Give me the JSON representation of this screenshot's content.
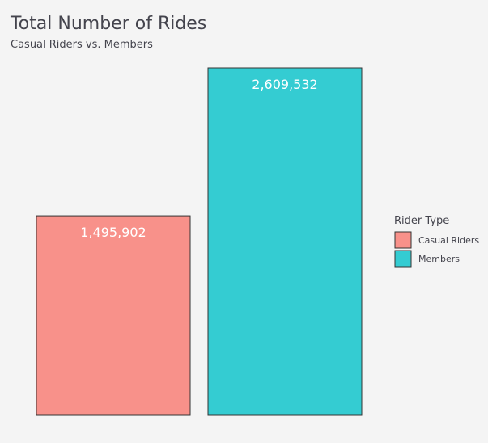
{
  "chart_data": {
    "type": "bar",
    "title": "Total Number of Rides",
    "subtitle": "Casual Riders vs. Members",
    "categories": [
      "Casual Riders",
      "Members"
    ],
    "values": [
      1495902,
      2609532
    ],
    "value_labels": [
      "1,495,902",
      "2,609,532"
    ],
    "colors": [
      "#f8918a",
      "#34ccd2"
    ],
    "legend": {
      "title": "Rider Type",
      "position": "right",
      "entries": [
        "Casual Riders",
        "Members"
      ]
    },
    "ylim": [
      0,
      2609532
    ],
    "grid": false,
    "xlabel": "",
    "ylabel": ""
  }
}
